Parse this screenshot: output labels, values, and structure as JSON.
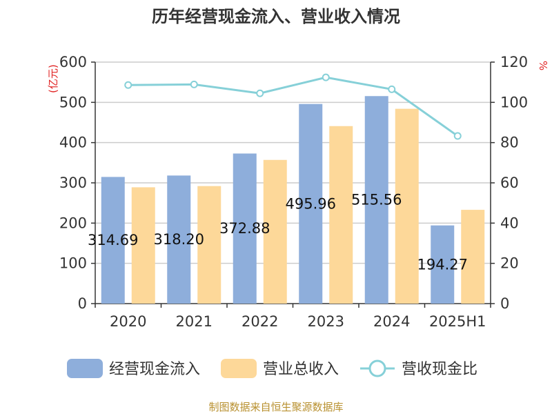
{
  "chart_data": {
    "type": "bar",
    "title": "历年经营现金流入、营业收入情况",
    "categories": [
      "2020",
      "2021",
      "2022",
      "2023",
      "2024",
      "2025H1"
    ],
    "left_axis": {
      "unit": "(亿元)",
      "ylim": [
        0,
        600
      ],
      "ticks": [
        "0",
        "100",
        "200",
        "300",
        "400",
        "500",
        "600"
      ]
    },
    "right_axis": {
      "unit": "%",
      "ylim": [
        0,
        120
      ],
      "ticks": [
        "0",
        "20",
        "40",
        "60",
        "80",
        "100",
        "120"
      ]
    },
    "series": [
      {
        "name": "经营现金流入",
        "type": "bar",
        "axis": "left",
        "color": "#8eaedb",
        "values": [
          314.69,
          318.2,
          372.88,
          495.96,
          515.56,
          194.27
        ],
        "labels": [
          "314.69",
          "318.20",
          "372.88",
          "495.96",
          "515.56",
          "194.27"
        ]
      },
      {
        "name": "营业总收入",
        "type": "bar",
        "axis": "left",
        "color": "#fdd899",
        "values": [
          289,
          292,
          357,
          441,
          484,
          233
        ]
      },
      {
        "name": "营收现金比",
        "type": "line",
        "axis": "right",
        "color": "#86d0d8",
        "values": [
          108.6,
          108.9,
          104.5,
          112.4,
          106.5,
          83.3
        ]
      }
    ],
    "grid": true,
    "legend_position": "bottom"
  },
  "source": "制图数据来自恒生聚源数据库"
}
